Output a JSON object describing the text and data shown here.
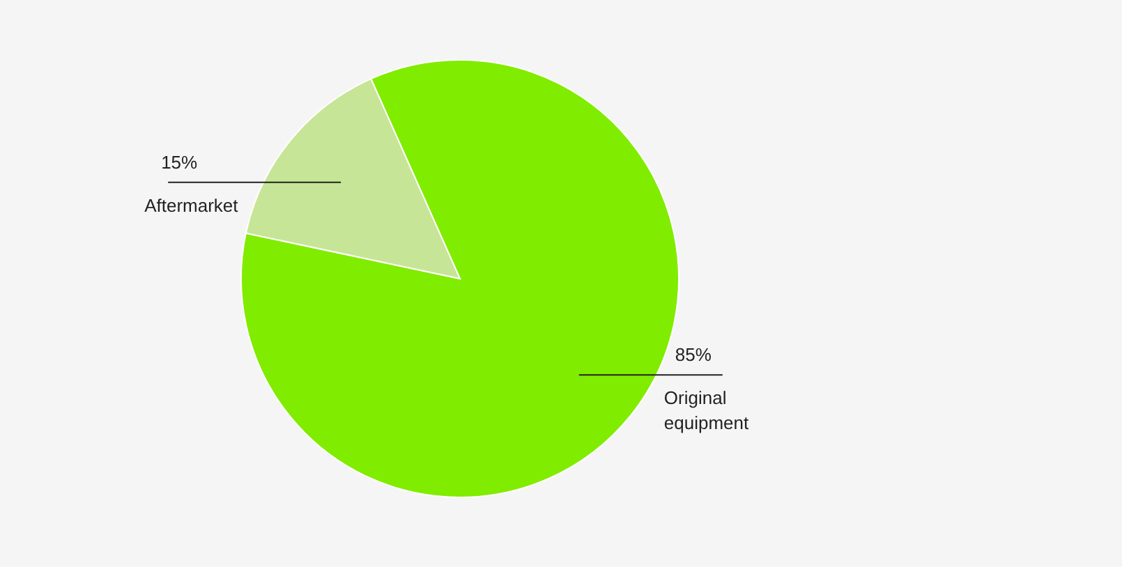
{
  "chart_data": {
    "type": "pie",
    "categories": [
      "Original equipment",
      "Aftermarket"
    ],
    "values": [
      85,
      15
    ],
    "colors": [
      "#80ec00",
      "#c7e596"
    ],
    "value_labels": [
      "85%",
      "15%"
    ]
  }
}
